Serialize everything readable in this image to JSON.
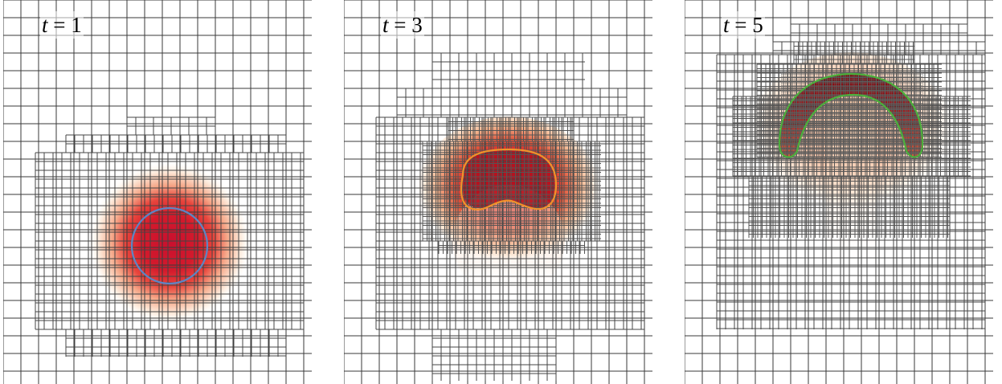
{
  "panels": [
    {
      "id": "t1",
      "label": {
        "var": "t",
        "eq": " = ",
        "value": "1"
      },
      "contour_color": "#5b86c5",
      "blob": "circle",
      "fill_colors": [
        "#c8102e",
        "#e8453c",
        "#f6a98a",
        "#fde8d8",
        "#fffaf2"
      ]
    },
    {
      "id": "t3",
      "label": {
        "var": "t",
        "eq": " = ",
        "value": "3"
      },
      "contour_color": "#f0922a",
      "blob": "cap",
      "fill_colors": [
        "#b0101f",
        "#d93a2e",
        "#f3b58e",
        "#fde6d2",
        "#fffaf2"
      ]
    },
    {
      "id": "t5",
      "label": {
        "var": "t",
        "eq": " = ",
        "value": "5"
      },
      "contour_color": "#4caf3c",
      "blob": "mushroom",
      "fill_colors": [
        "#8a0d14",
        "#c0302a",
        "#e9a07a",
        "#fbe2cc",
        "#fff8ee"
      ]
    }
  ]
}
